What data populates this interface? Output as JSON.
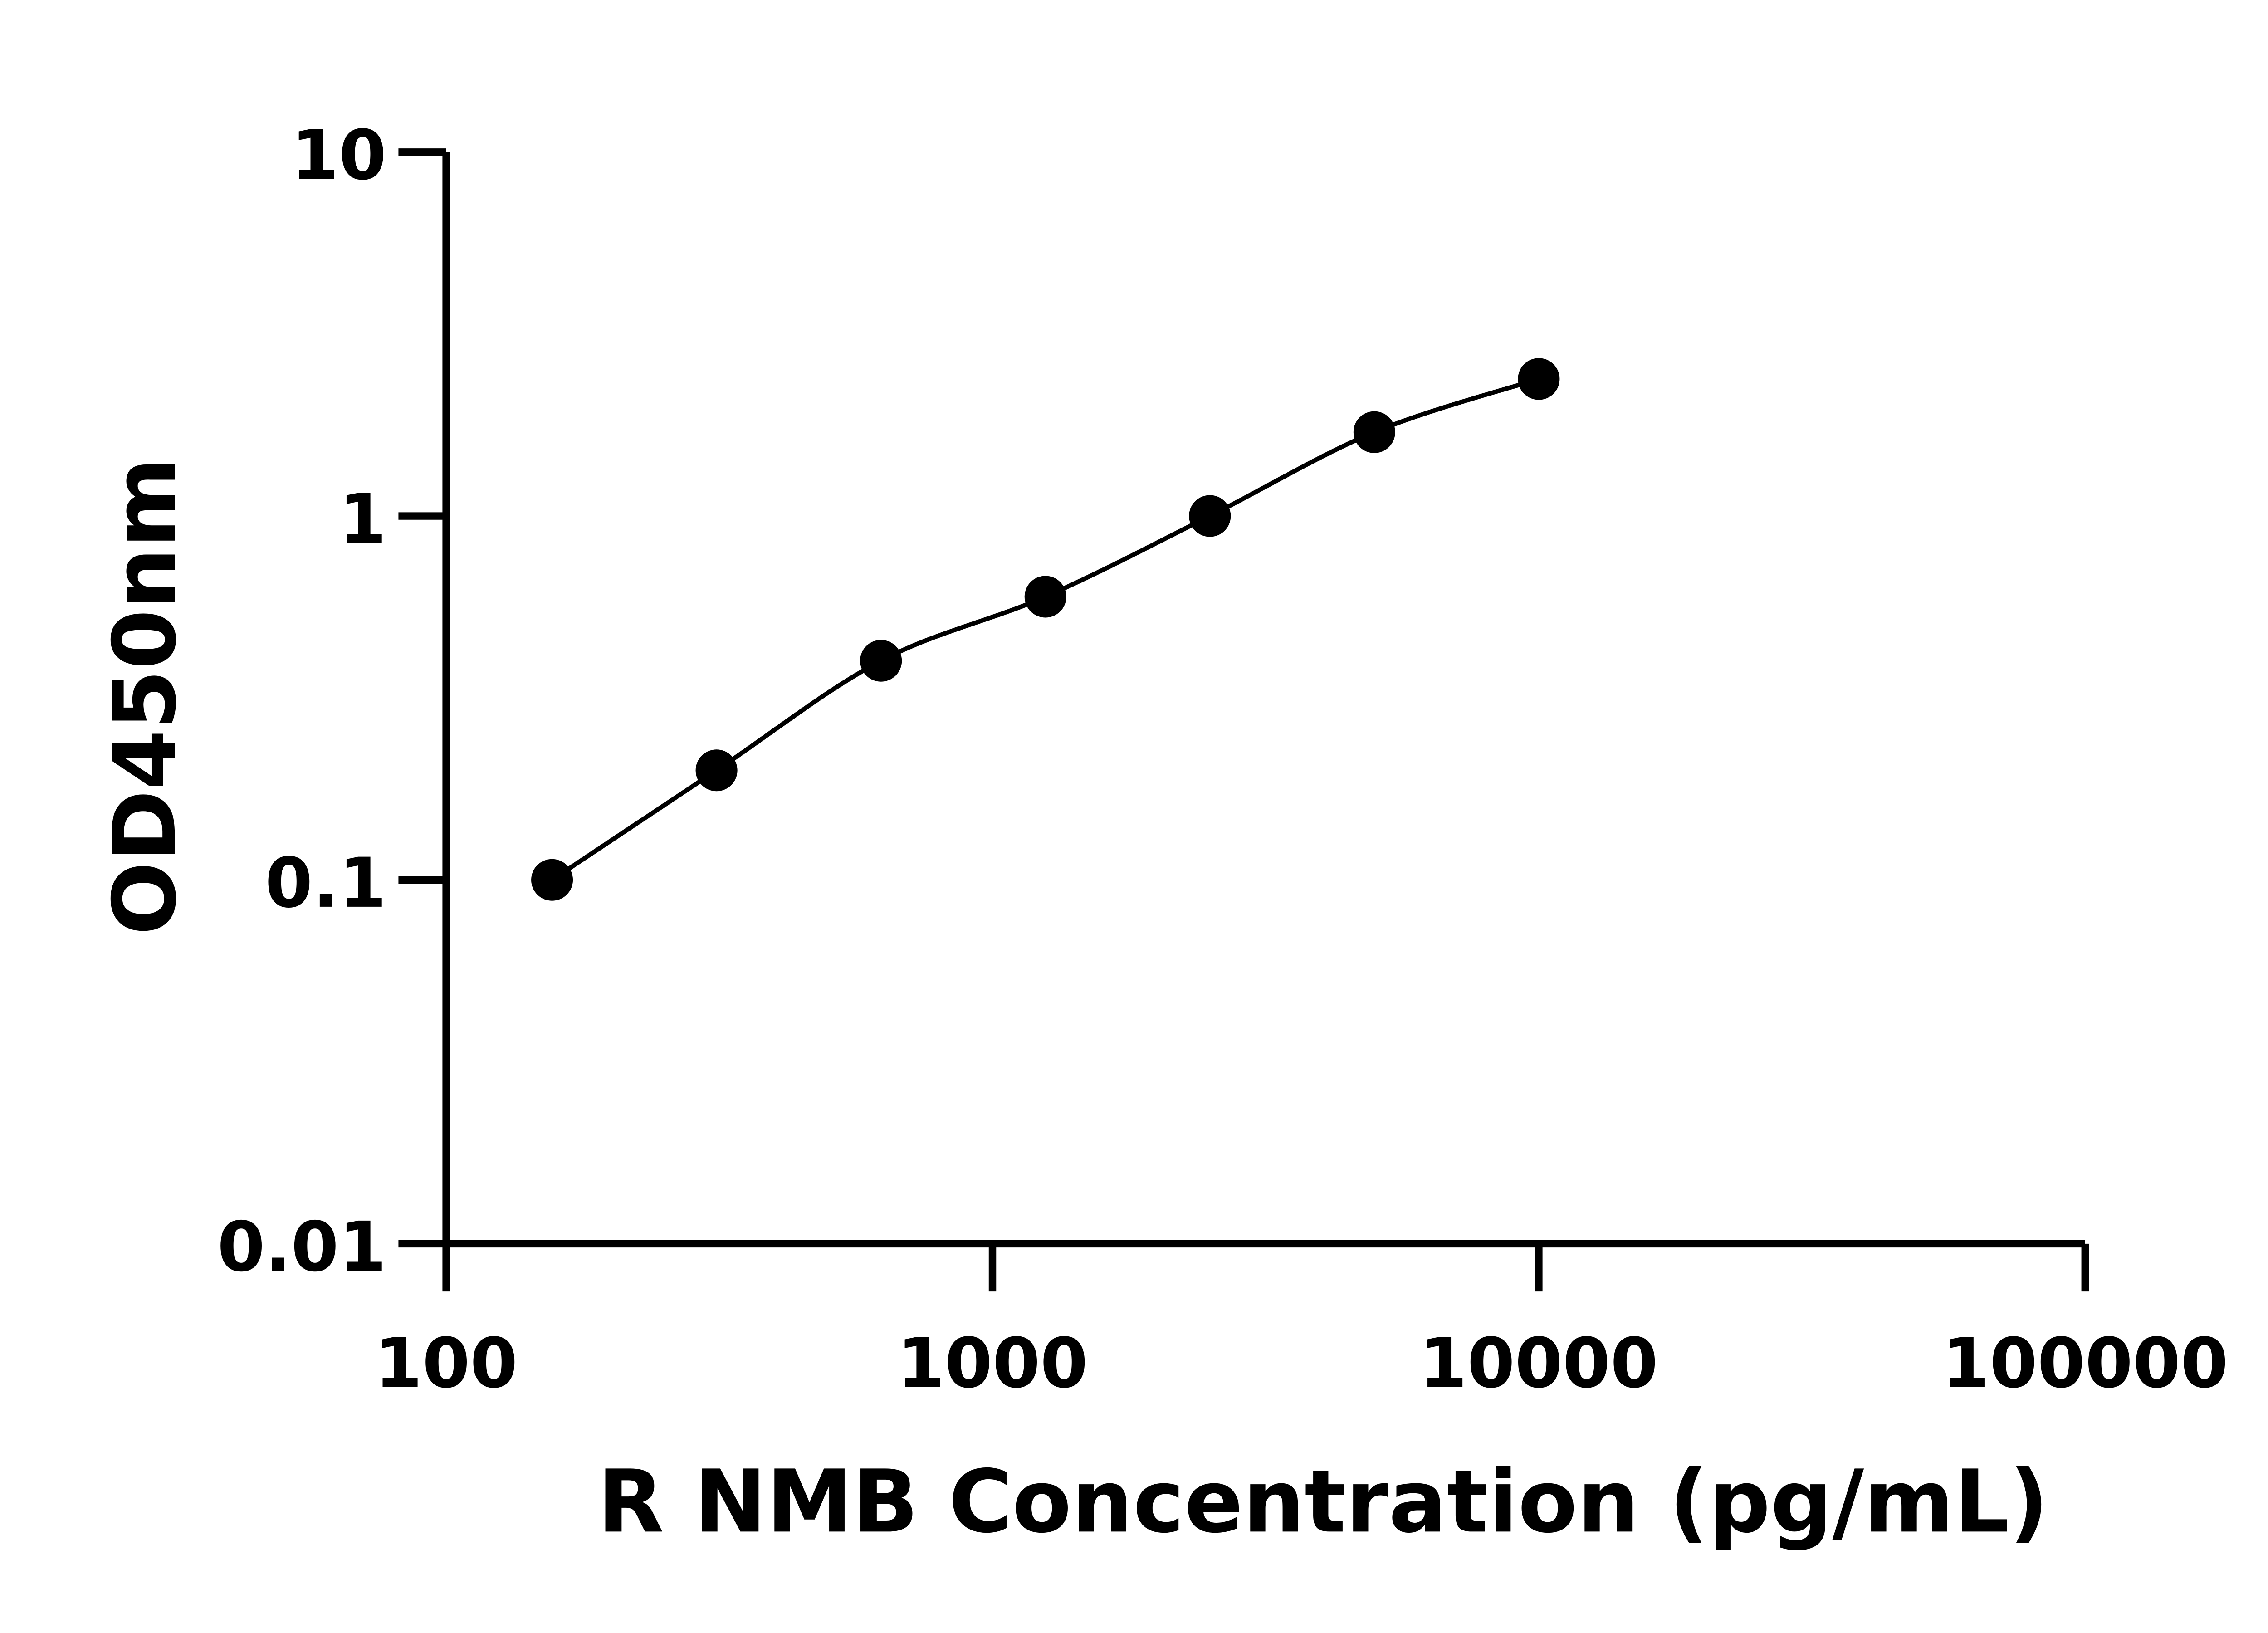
{
  "chart_data": {
    "type": "scatter",
    "title": "",
    "xlabel": "R NMB Concentration (pg/mL)",
    "ylabel": "OD450nm",
    "x_scale": "log",
    "y_scale": "log",
    "xlim": [
      100,
      100000
    ],
    "ylim": [
      0.01,
      10
    ],
    "x_ticks": [
      "100",
      "1000",
      "10000",
      "100000"
    ],
    "y_ticks": [
      "0.01",
      "0.1",
      "1",
      "10"
    ],
    "grid": false,
    "legend": "none",
    "colors": {
      "points": "#000000",
      "line": "#000000",
      "axes": "#000000"
    },
    "fit_line": true,
    "series": [
      {
        "x": [
          156.25,
          312.5,
          625,
          1250,
          2500,
          5000,
          10000
        ],
        "y": [
          0.1,
          0.2,
          0.4,
          0.6,
          1.0,
          1.7,
          2.38
        ]
      }
    ]
  }
}
